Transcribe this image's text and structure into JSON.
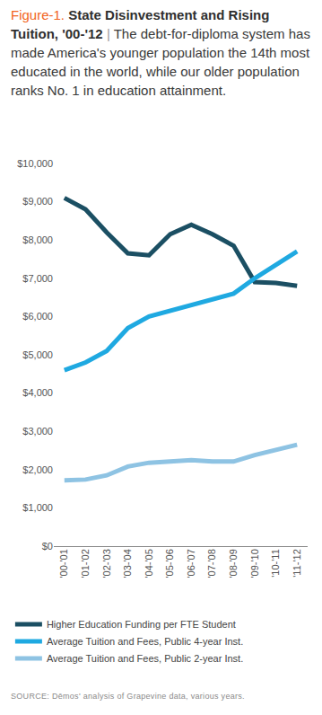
{
  "chart_data": {
    "type": "line",
    "figure_label": "Figure-1.",
    "title": "State Disinvestment and Rising Tuition, '00-'12",
    "separator": "|",
    "subtitle": "The debt-for-diploma system has made America's younger population the 14th most educated in the world, while our older population ranks No. 1 in education attainment.",
    "source": "SOURCE: Dēmos' analysis of Grapevine data, various years.",
    "categories": [
      "'00-'01",
      "'01-'02",
      "'02-'03",
      "'03-'04",
      "'04-'05",
      "'05-'06",
      "'06-'07",
      "'07-'08",
      "'08-'09",
      "'09-'10",
      "'10-'11",
      "'11-'12"
    ],
    "series": [
      {
        "name": "Higher Education Funding per FTE Student",
        "color": "#1b4f63",
        "values": [
          9100,
          8800,
          8200,
          7650,
          7600,
          8150,
          8400,
          8150,
          7850,
          6900,
          6880,
          6800
        ]
      },
      {
        "name": "Average Tuition and Fees, Public 4-year Inst.",
        "color": "#1fa9e1",
        "values": [
          4600,
          4800,
          5100,
          5700,
          6000,
          6150,
          6300,
          6450,
          6600,
          7000,
          7350,
          7700
        ]
      },
      {
        "name": "Average Tuition and Fees, Public 2-year Inst.",
        "color": "#8ec3e3",
        "values": [
          1720,
          1740,
          1850,
          2080,
          2180,
          2220,
          2250,
          2210,
          2210,
          2380,
          2500,
          2650
        ]
      }
    ],
    "ylim": [
      0,
      10000
    ],
    "yticks": [
      {
        "value": 0,
        "label": "$0"
      },
      {
        "value": 1000,
        "label": "$1,000"
      },
      {
        "value": 2000,
        "label": "$2,000"
      },
      {
        "value": 3000,
        "label": "$3,000"
      },
      {
        "value": 4000,
        "label": "$4,000"
      },
      {
        "value": 5000,
        "label": "$5,000"
      },
      {
        "value": 6000,
        "label": "$6,000"
      },
      {
        "value": 7000,
        "label": "$7,000"
      },
      {
        "value": 8000,
        "label": "$8,000"
      },
      {
        "value": 9000,
        "label": "$9,000"
      },
      {
        "value": 10000,
        "label": "$10,000"
      }
    ],
    "grid": false,
    "legend": "bottom"
  }
}
